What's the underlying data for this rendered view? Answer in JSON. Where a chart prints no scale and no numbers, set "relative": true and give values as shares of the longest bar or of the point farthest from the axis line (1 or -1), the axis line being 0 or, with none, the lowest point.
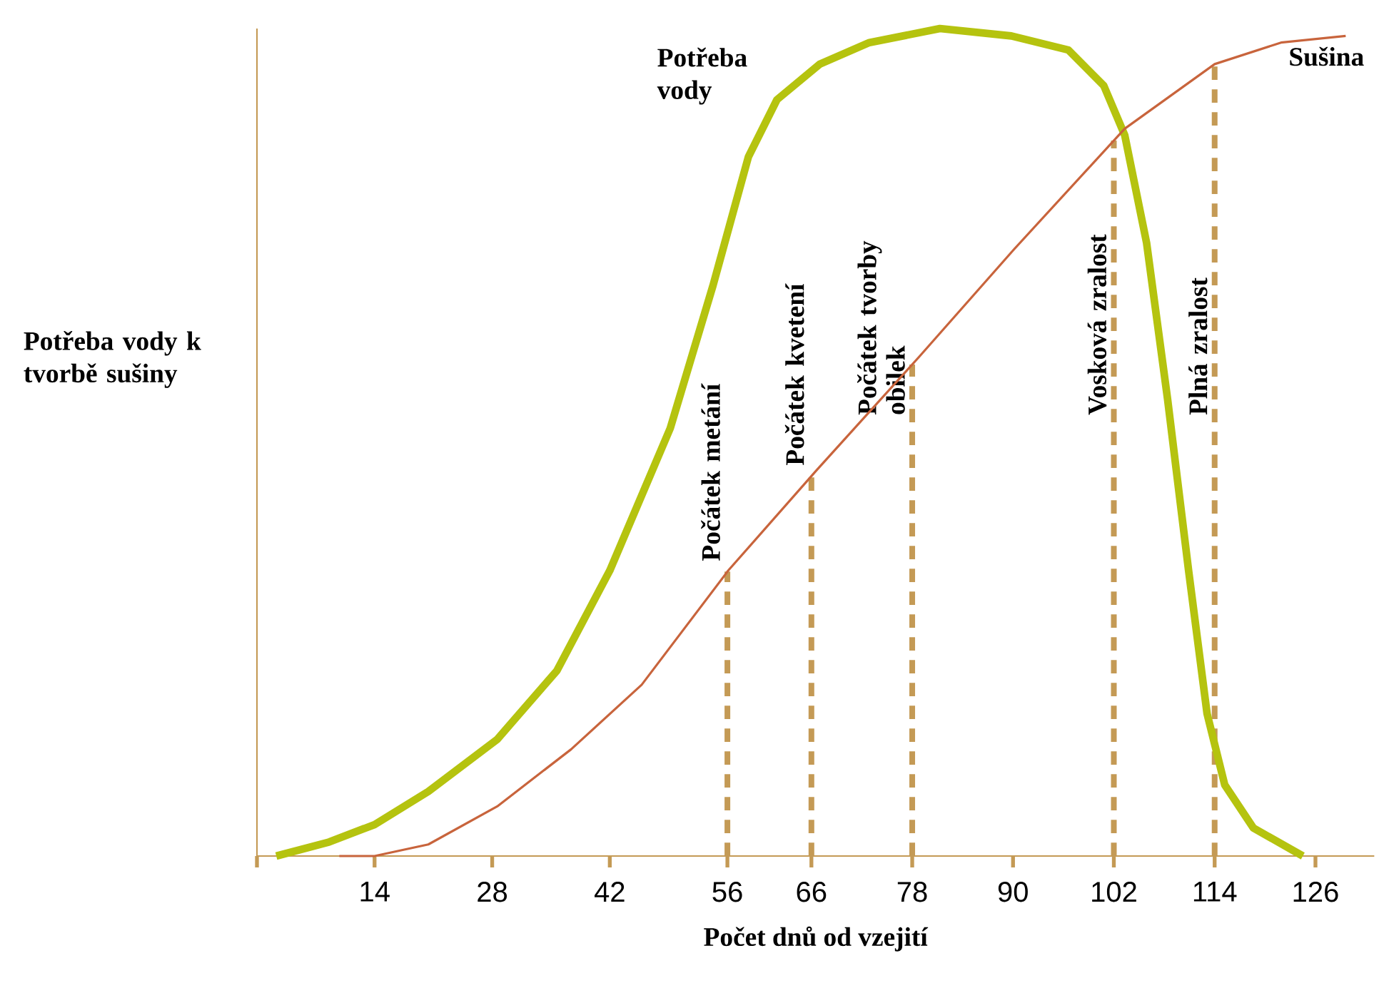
{
  "chart_data": {
    "type": "line",
    "relative": true,
    "xlabel": "Počet dnů od vzejití",
    "ylabel": "Potřeba vody k tvorbě sušiny",
    "xlim": [
      0,
      133
    ],
    "xticks": [
      {
        "value": 0,
        "label": null
      },
      14,
      28,
      42,
      56,
      66,
      78,
      90,
      102,
      114,
      126
    ],
    "grid": false,
    "marker": "none",
    "line_style": "solid",
    "series": [
      {
        "name": "Potřeba vody",
        "color": "#b5c30f",
        "x": [
          2.3,
          8.6,
          14.0,
          20.4,
          28.6,
          35.7,
          42.0,
          49.2,
          54.3,
          58.5,
          61.9,
          67.0,
          72.9,
          81.3,
          89.8,
          96.6,
          100.8,
          103.3,
          105.9,
          108.4,
          110.9,
          113.1,
          115.2,
          118.6,
          124.5
        ],
        "values": [
          0.0,
          0.017,
          0.038,
          0.078,
          0.141,
          0.224,
          0.345,
          0.517,
          0.69,
          0.845,
          0.914,
          0.957,
          0.983,
          1.0,
          0.991,
          0.974,
          0.931,
          0.871,
          0.741,
          0.552,
          0.345,
          0.172,
          0.086,
          0.034,
          0.0
        ]
      },
      {
        "name": "Sušina",
        "color": "#c8643c",
        "x": [
          9.8,
          14.0,
          20.4,
          28.6,
          37.4,
          45.8,
          56.1,
          66.6,
          78.8,
          90.1,
          103.3,
          114.0,
          121.9,
          129.6
        ],
        "values": [
          0.0,
          0.0,
          0.014,
          0.06,
          0.129,
          0.207,
          0.345,
          0.466,
          0.603,
          0.733,
          0.879,
          0.957,
          0.983,
          0.991
        ]
      }
    ],
    "ref_lines": [
      {
        "axis": "x",
        "value": 56,
        "label": "Počátek metání",
        "color": "#c49a55",
        "line_style": "dashed"
      },
      {
        "axis": "x",
        "value": 66,
        "label": "Počátek kvetení",
        "color": "#c49a55",
        "line_style": "dashed"
      },
      {
        "axis": "x",
        "value": 78,
        "label": "Počátek tvorby obilek",
        "color": "#c49a55",
        "line_style": "dashed"
      },
      {
        "axis": "x",
        "value": 102,
        "label": "Vosková zralost",
        "color": "#c49a55",
        "line_style": "dashed"
      },
      {
        "axis": "x",
        "value": 114,
        "label": "Plná zralost",
        "color": "#c49a55",
        "line_style": "dashed"
      }
    ]
  }
}
